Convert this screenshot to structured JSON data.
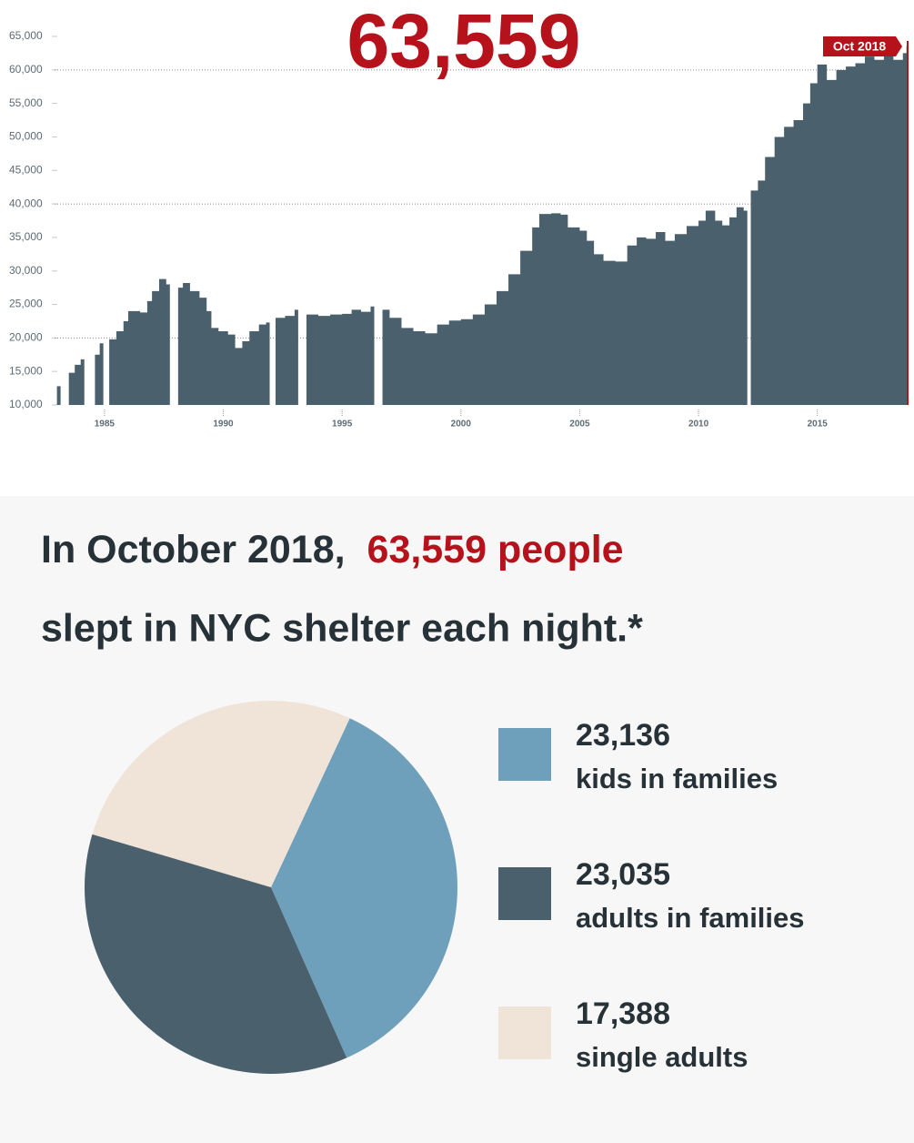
{
  "chart_data": [
    {
      "type": "area",
      "annotations": [
        "63,559",
        "Oct 2018"
      ],
      "x": [
        1983.0,
        1983.25,
        1983.5,
        1983.75,
        1984.0,
        1984.25,
        1984.6,
        1984.8,
        1985.0,
        1985.2,
        1985.5,
        1985.8,
        1986.0,
        1986.5,
        1986.8,
        1987.0,
        1987.3,
        1987.6,
        1987.9,
        1988.1,
        1988.3,
        1988.6,
        1989.0,
        1989.3,
        1989.5,
        1989.8,
        1990.2,
        1990.5,
        1990.8,
        1991.1,
        1991.5,
        1991.8,
        1992.0,
        1992.2,
        1992.6,
        1993.0,
        1993.4,
        1993.5,
        1994.0,
        1994.5,
        1995.0,
        1995.4,
        1995.8,
        1996.2,
        1996.5,
        1996.7,
        1997.0,
        1997.5,
        1998.0,
        1998.5,
        1999.0,
        1999.5,
        2000.0,
        2000.5,
        2001.0,
        2001.5,
        2002.0,
        2002.5,
        2003.0,
        2003.3,
        2003.8,
        2004.2,
        2004.5,
        2005.0,
        2005.3,
        2005.6,
        2006.0,
        2006.5,
        2007.0,
        2007.4,
        2007.8,
        2008.2,
        2008.6,
        2009.0,
        2009.5,
        2010.0,
        2010.3,
        2010.7,
        2011.0,
        2011.3,
        2011.6,
        2011.9,
        2012.0,
        2012.2,
        2012.5,
        2012.8,
        2013.2,
        2013.6,
        2014.0,
        2014.4,
        2014.7,
        2015.0,
        2015.4,
        2015.8,
        2016.2,
        2016.6,
        2017.0,
        2017.4,
        2017.8,
        2018.2,
        2018.6,
        2018.75
      ],
      "series": [
        {
          "color": "#4b606d",
          "values": [
            12800,
            null,
            14800,
            16000,
            16800,
            null,
            17500,
            19200,
            null,
            19800,
            21000,
            22500,
            24000,
            23800,
            25500,
            27000,
            28800,
            28000,
            null,
            27500,
            28200,
            27000,
            26000,
            24000,
            21500,
            21000,
            20500,
            18500,
            19500,
            21000,
            22000,
            22300,
            null,
            23000,
            23300,
            24200,
            null,
            23500,
            23300,
            23500,
            23600,
            24200,
            23900,
            24700,
            null,
            24200,
            23000,
            21500,
            21000,
            20700,
            22000,
            22600,
            22800,
            23500,
            25000,
            27000,
            29500,
            33000,
            36500,
            38500,
            38600,
            38400,
            36500,
            36000,
            34500,
            32500,
            31500,
            31400,
            33800,
            35000,
            34800,
            35800,
            34500,
            35500,
            36700,
            37500,
            39000,
            37500,
            36800,
            38000,
            39500,
            39000,
            null,
            42000,
            43500,
            47000,
            50000,
            51500,
            52500,
            55000,
            58000,
            60800,
            58500,
            60000,
            60500,
            61000,
            62000,
            61500,
            62500,
            61500,
            62500,
            63559
          ]
        }
      ],
      "xlim": [
        1982.9,
        2018.8
      ],
      "xticks": [
        1985,
        1990,
        1995,
        2000,
        2005,
        2010,
        2015
      ],
      "ylim": [
        10000,
        65000
      ],
      "yticks": [
        {
          "value": 10000,
          "label": "10,000"
        },
        {
          "value": 15000,
          "label": "15,000"
        },
        {
          "value": 20000,
          "label": "20,000"
        },
        {
          "value": 25000,
          "label": "25,000"
        },
        {
          "value": 30000,
          "label": "30,000"
        },
        {
          "value": 35000,
          "label": "35,000"
        },
        {
          "value": 40000,
          "label": "40,000"
        },
        {
          "value": 45000,
          "label": "45,000"
        },
        {
          "value": 50000,
          "label": "50,000"
        },
        {
          "value": 55000,
          "label": "55,000"
        },
        {
          "value": 60000,
          "label": "60,000"
        },
        {
          "value": 65000,
          "label": "65,000"
        }
      ],
      "grid_lines": [
        20000,
        40000,
        60000
      ]
    },
    {
      "type": "pie",
      "title_parts": [
        "In October 2018,",
        "63,559 people",
        "slept in NYC shelter each night.*"
      ],
      "categories": [
        "kids in families",
        "adults in families",
        "single adults"
      ],
      "values": [
        23136,
        23035,
        17388
      ],
      "value_labels": [
        "23,136",
        "23,035",
        "17,388"
      ],
      "colors": [
        "#6fa0bb",
        "#4b606d",
        "#efe4d7"
      ]
    }
  ]
}
